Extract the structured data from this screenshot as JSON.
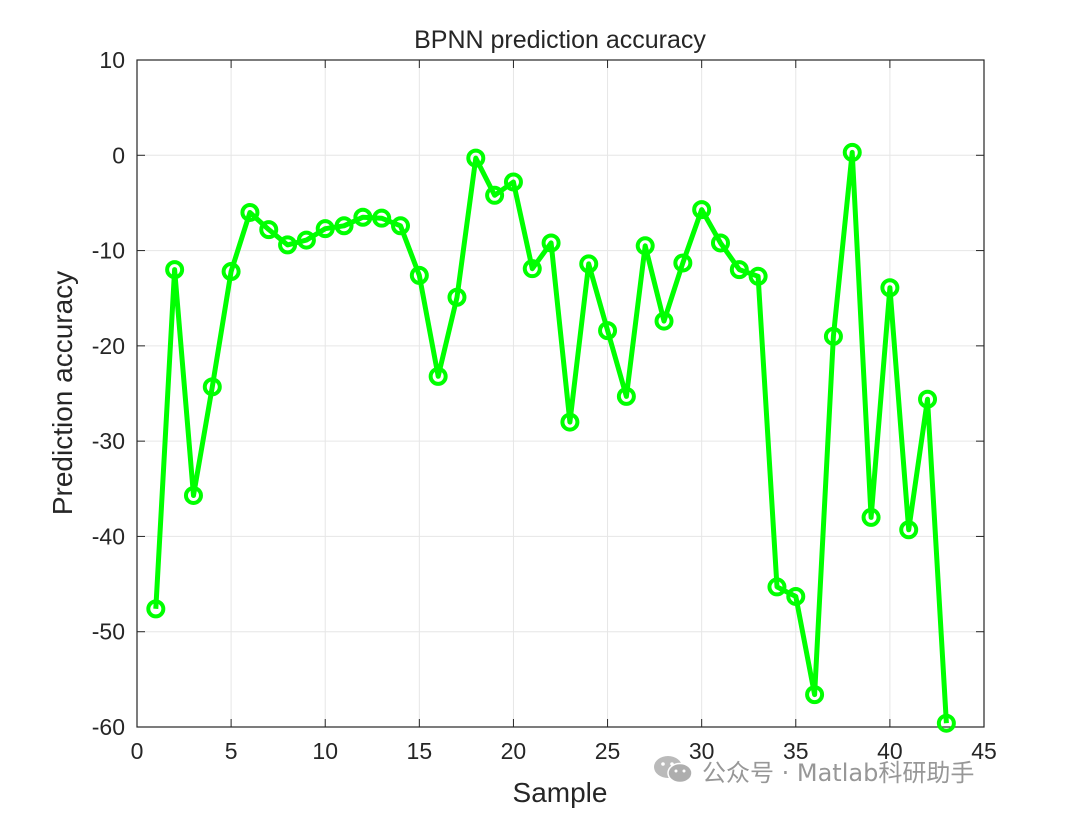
{
  "chart_data": {
    "type": "line",
    "title": "BPNN prediction accuracy",
    "xlabel": "Sample",
    "ylabel": "Prediction accuracy",
    "xlim": [
      0,
      45
    ],
    "ylim": [
      -60,
      10
    ],
    "xticks": [
      0,
      5,
      10,
      15,
      20,
      25,
      30,
      35,
      40,
      45
    ],
    "yticks": [
      10,
      0,
      -10,
      -20,
      -30,
      -40,
      -50,
      -60
    ],
    "grid": true,
    "marker": "circle",
    "line_color": "#00ff00",
    "series": [
      {
        "x": [
          1,
          2,
          3,
          4,
          5,
          6,
          7,
          8,
          9,
          10,
          11,
          12,
          13,
          14,
          15,
          16,
          17,
          18,
          19,
          20,
          21,
          22,
          23,
          24,
          25,
          26,
          27,
          28,
          29,
          30,
          31,
          32,
          33,
          34,
          35,
          36,
          37,
          38,
          39,
          40,
          41,
          42,
          43
        ],
        "values": [
          -47.6,
          -12.0,
          -35.7,
          -24.3,
          -12.2,
          -6.0,
          -7.8,
          -9.4,
          -8.9,
          -7.7,
          -7.4,
          -6.5,
          -6.6,
          -7.4,
          -12.6,
          -23.2,
          -14.9,
          -0.3,
          -4.2,
          -2.8,
          -11.9,
          -9.2,
          -28.0,
          -11.4,
          -18.4,
          -25.3,
          -9.5,
          -17.4,
          -11.3,
          -5.7,
          -9.2,
          -12.0,
          -12.7,
          -45.3,
          -46.3,
          -56.6,
          -19.0,
          0.3,
          -38.0,
          -13.9,
          -39.3,
          -25.6,
          -59.6
        ]
      }
    ]
  },
  "watermark": {
    "text": "公众号 · Matlab科研助手",
    "icon": "wechat-icon",
    "color": "#8c8c8c"
  }
}
